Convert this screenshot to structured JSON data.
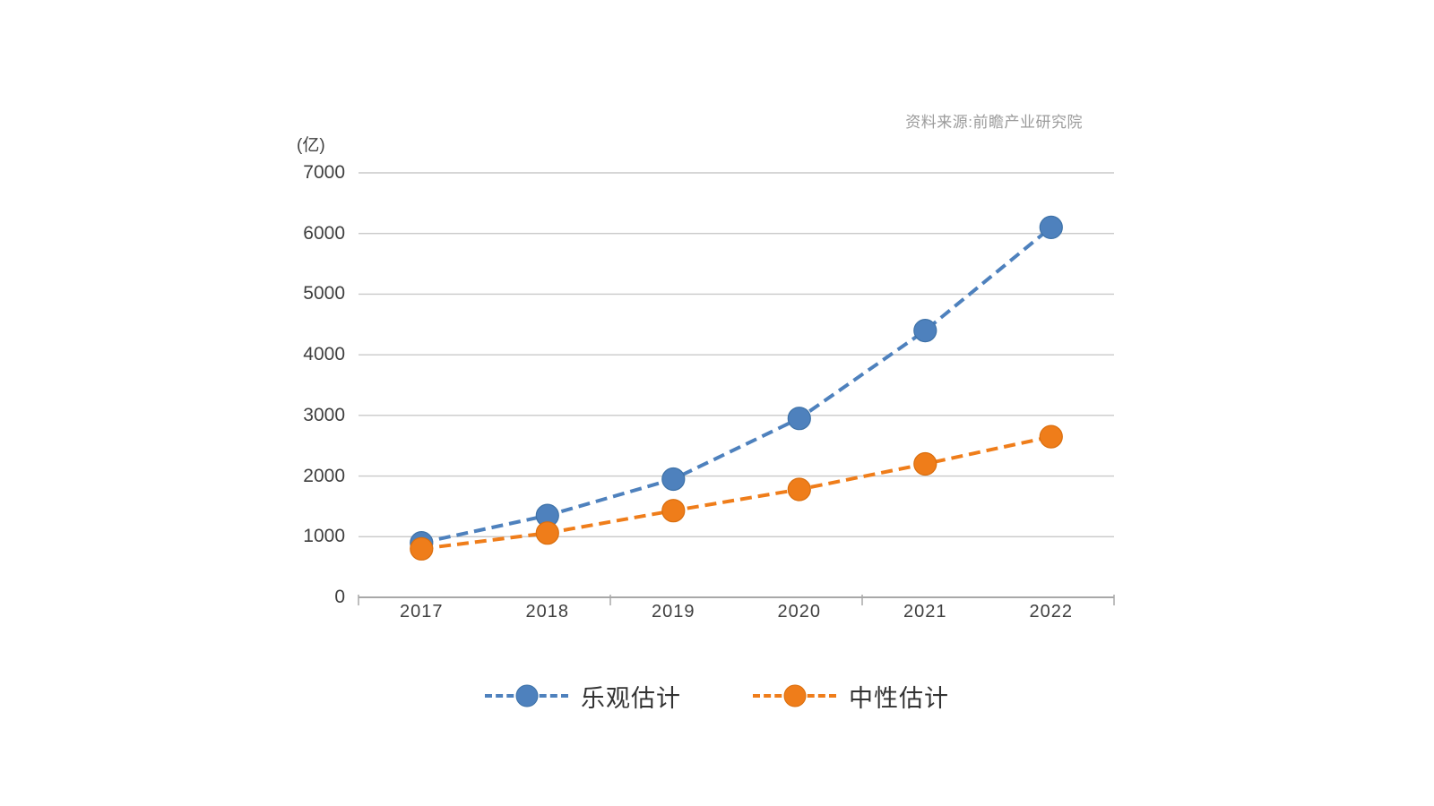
{
  "chart_data": {
    "type": "line",
    "title": "",
    "source_note": "资料来源:前瞻产业研究院",
    "y_unit_label": "(亿)",
    "categories": [
      "2017",
      "2018",
      "2019",
      "2020",
      "2021",
      "2022"
    ],
    "series": [
      {
        "name": "乐观估计",
        "color": "#4e81bd",
        "marker_border": "#3e72a8",
        "line_style": "dashed",
        "marker": "circle",
        "values": [
          900,
          1350,
          1950,
          2950,
          4400,
          6100
        ]
      },
      {
        "name": "中性估计",
        "color": "#ef7d1a",
        "marker_border": "#da6e0e",
        "line_style": "dashed",
        "marker": "circle",
        "values": [
          800,
          1060,
          1430,
          1780,
          2200,
          2650
        ]
      }
    ],
    "ylim": [
      0,
      7000
    ],
    "yticks": [
      0,
      1000,
      2000,
      3000,
      4000,
      5000,
      6000,
      7000
    ],
    "xtick_mark_interval": 2,
    "grid": "horizontal",
    "legend_position": "bottom-center",
    "colors": {
      "grid": "#c9c9c9",
      "axis": "#a8a8a8",
      "tick_text": "#3f3f3f",
      "legend_text": "#333333",
      "source_text": "#9b9b9b"
    }
  }
}
